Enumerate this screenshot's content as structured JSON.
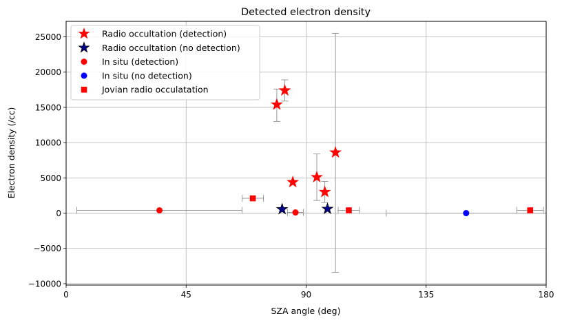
{
  "chart_data": {
    "type": "scatter",
    "title": "Detected electron density",
    "xlabel": "SZA angle (deg)",
    "ylabel": "Electron density (/cc)",
    "xlim": [
      0,
      180
    ],
    "ylim": [
      -10200,
      27200
    ],
    "xticks": [
      0,
      45,
      90,
      135,
      180
    ],
    "xtick_labels": [
      "0",
      "45",
      "90",
      "135",
      "180"
    ],
    "yticks": [
      -10000,
      -5000,
      0,
      5000,
      10000,
      15000,
      20000,
      25000
    ],
    "ytick_labels": [
      "−10000",
      "−5000",
      "0",
      "5000",
      "10000",
      "15000",
      "20000",
      "25000"
    ],
    "grid": true,
    "legend_position": "top-left",
    "colors": {
      "detection": "#ff0000",
      "no_detection": "#0000ff",
      "no_detection_star": "#00008b",
      "errorbar": "#999999",
      "grid": "#b0b0b0"
    },
    "series": [
      {
        "name": "Radio occultation (detection)",
        "marker": "star",
        "color": "#ff0000",
        "points": [
          {
            "x": 79,
            "y": 15400,
            "yerr": [
              2400,
              2200
            ]
          },
          {
            "x": 82,
            "y": 17400,
            "yerr": [
              1500,
              1500
            ]
          },
          {
            "x": 85,
            "y": 4400
          },
          {
            "x": 94,
            "y": 5100,
            "yerr": [
              3300,
              3300
            ]
          },
          {
            "x": 97,
            "y": 3000,
            "yerr": [
              1500,
              1500
            ]
          },
          {
            "x": 101,
            "y": 8600,
            "yerr": [
              17000,
              16900
            ]
          }
        ]
      },
      {
        "name": "Radio occultation (no detection)",
        "marker": "star",
        "color": "#00008b",
        "points": [
          {
            "x": 81,
            "y": 550
          },
          {
            "x": 98,
            "y": 600
          }
        ]
      },
      {
        "name": "In situ (detection)",
        "marker": "circle",
        "color": "#ff0000",
        "points": [
          {
            "x": 35,
            "y": 400,
            "xerr": [
              31,
              31
            ]
          },
          {
            "x": 86,
            "y": 100,
            "xerr": [
              3,
              3
            ]
          }
        ]
      },
      {
        "name": "In situ (no detection)",
        "marker": "circle",
        "color": "#0000ff",
        "points": [
          {
            "x": 150,
            "y": 0,
            "xerr": [
              30,
              30
            ]
          }
        ]
      },
      {
        "name": "Jovian radio occulatation",
        "marker": "square",
        "color": "#ff0000",
        "points": [
          {
            "x": 70,
            "y": 2100,
            "xerr": [
              4,
              4
            ]
          },
          {
            "x": 106,
            "y": 400,
            "xerr": [
              4,
              4
            ]
          },
          {
            "x": 174,
            "y": 400,
            "xerr": [
              5,
              5
            ]
          }
        ]
      }
    ]
  }
}
